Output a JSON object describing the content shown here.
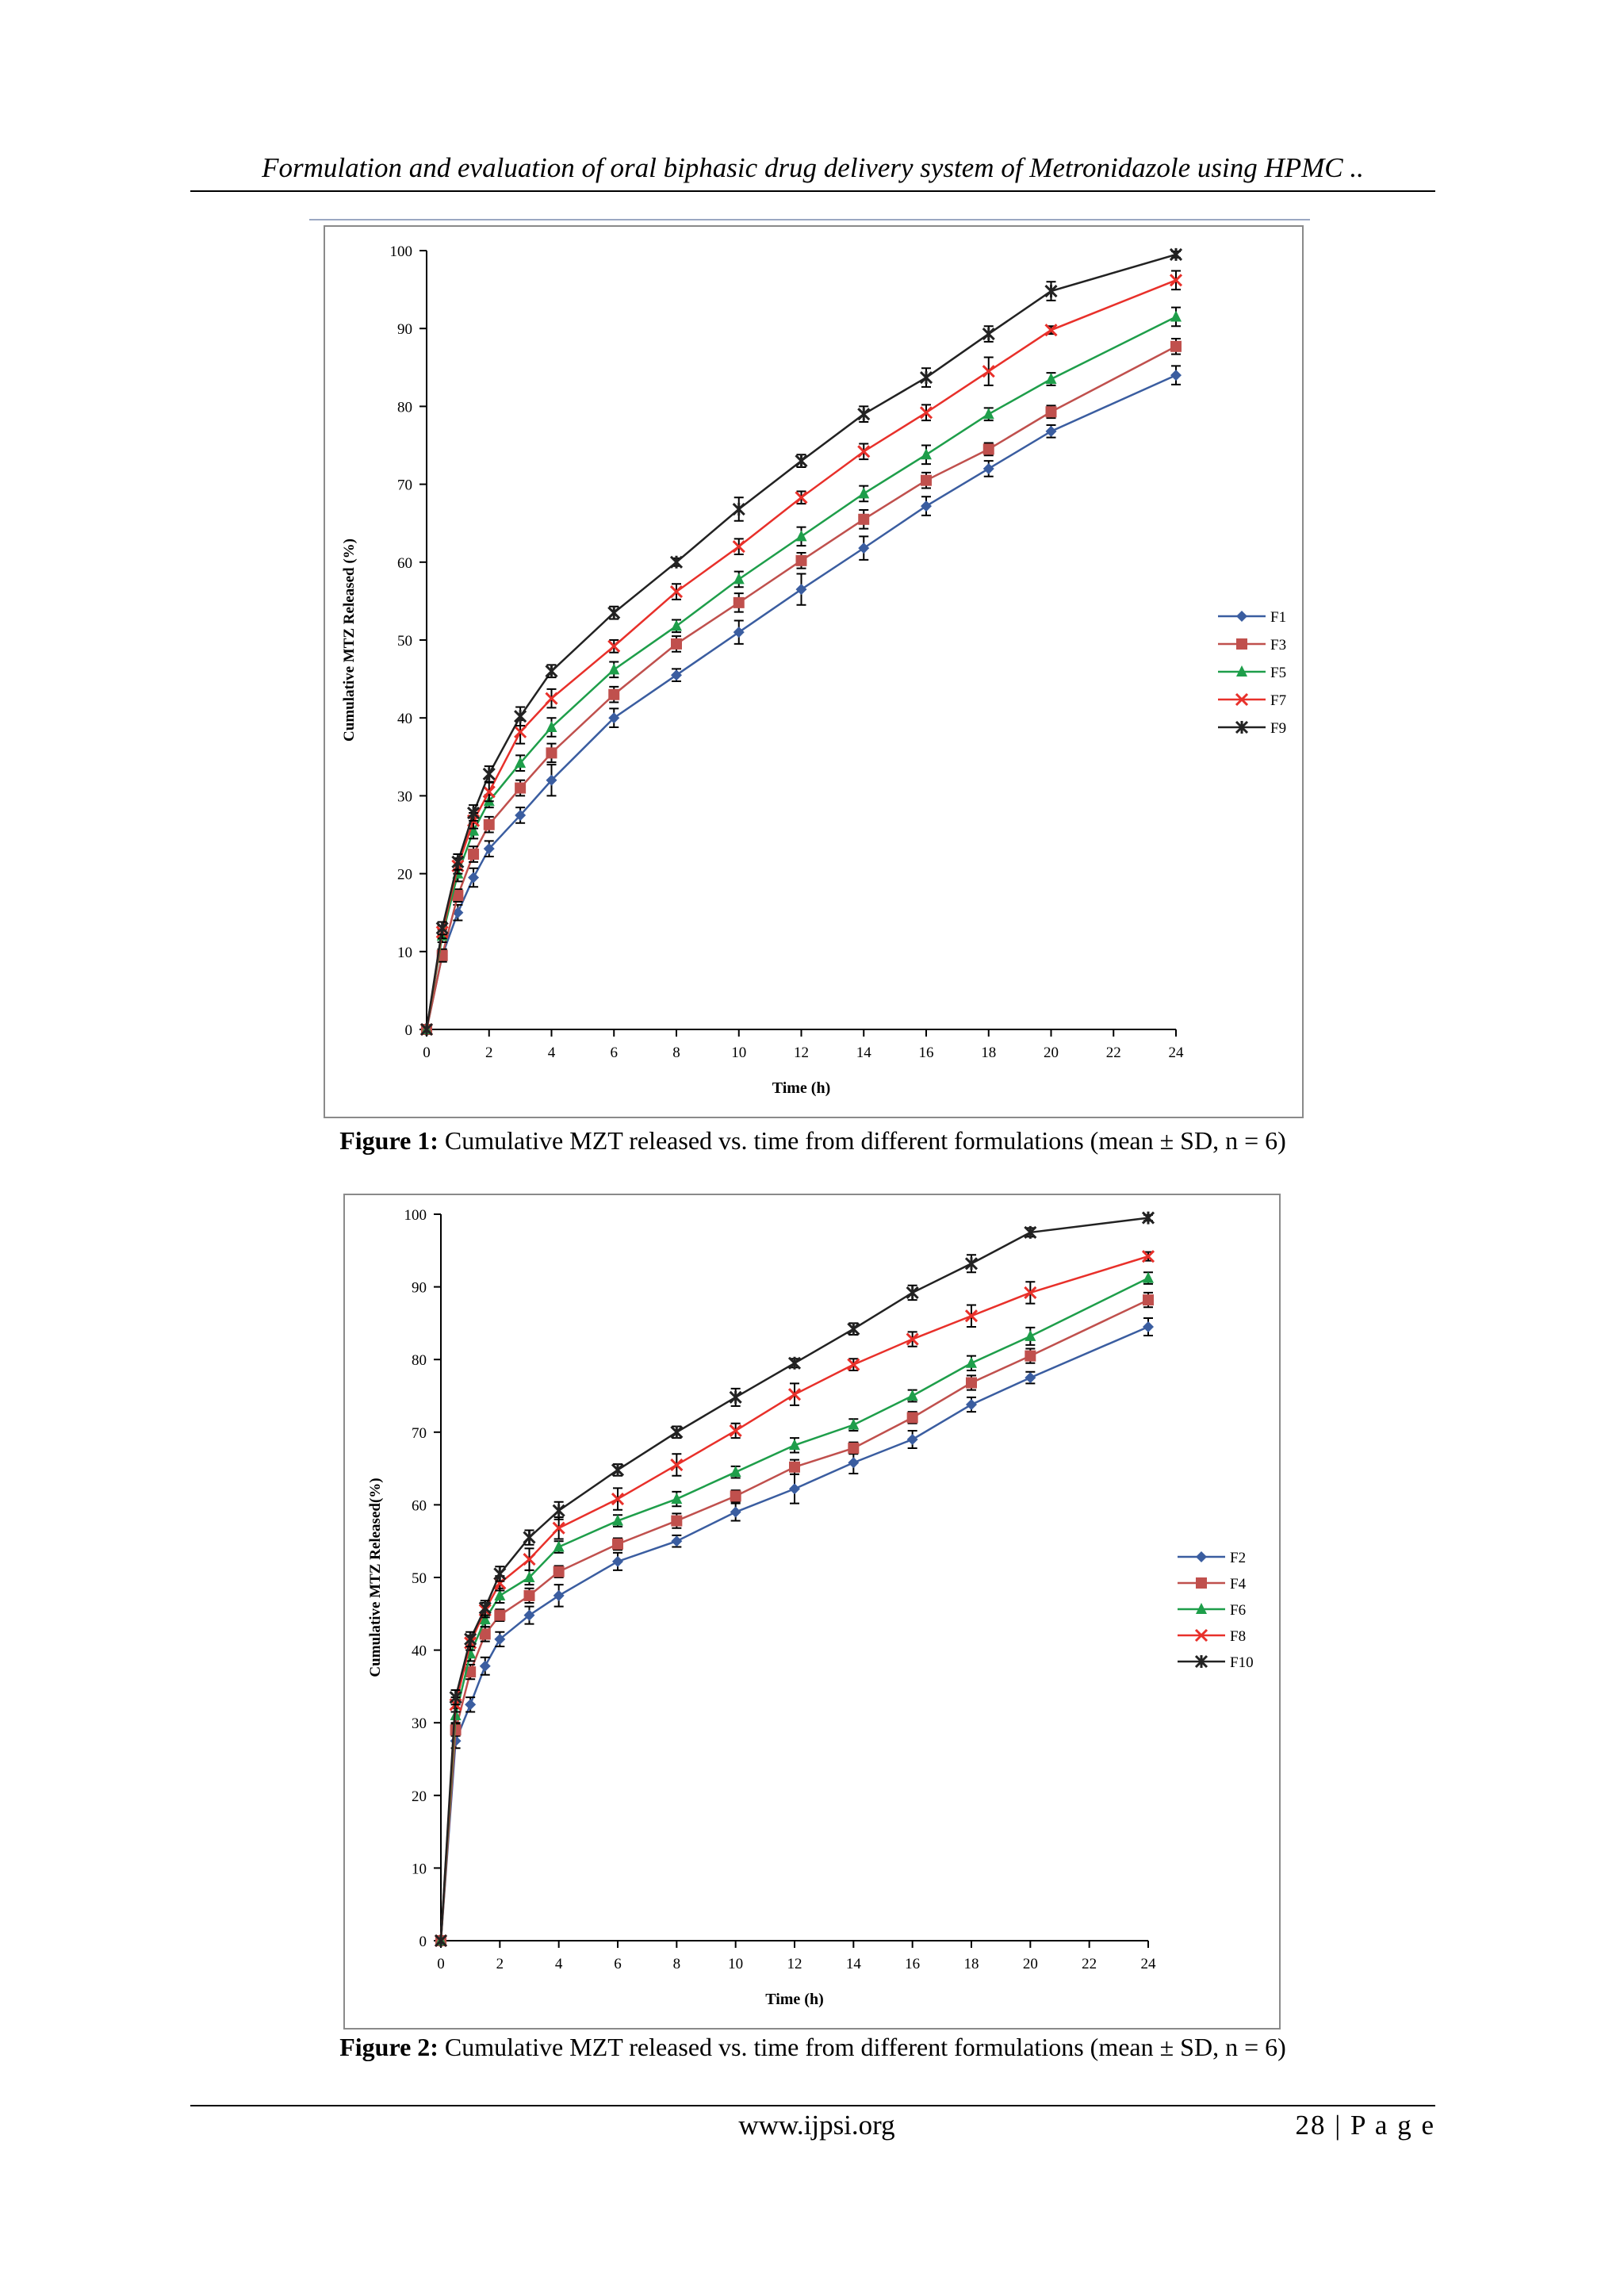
{
  "header": {
    "running_title": "Formulation and evaluation of oral biphasic drug delivery system of Metronidazole using HPMC .."
  },
  "footer": {
    "website": "www.ijpsi.org",
    "page_label": "28 | P a g e"
  },
  "colors": {
    "F1": "#3a5da0",
    "F3": "#c0504d",
    "F5": "#1e9e4a",
    "F7": "#e8302a",
    "F9": "#222222",
    "F2": "#3a5da0",
    "F4": "#c0504d",
    "F6": "#1e9e4a",
    "F8": "#e8302a",
    "F10": "#222222"
  },
  "figures": [
    {
      "caption_bold": "Figure 1:",
      "caption_text": " Cumulative MZT released vs. time from different formulations  (mean ± SD, n = 6)"
    },
    {
      "caption_bold": "Figure  2:",
      "caption_text": " Cumulative MZT released vs. time from different formulations  (mean ± SD, n = 6)"
    }
  ],
  "chart_data": [
    {
      "type": "line",
      "xlabel": "Time (h)",
      "ylabel": "Cumulative MTZ Released (%)",
      "xlim": [
        0,
        24
      ],
      "ylim": [
        0,
        100
      ],
      "x_ticks": [
        0,
        2,
        4,
        6,
        8,
        10,
        12,
        14,
        16,
        18,
        20,
        22,
        24
      ],
      "y_ticks": [
        0,
        10,
        20,
        30,
        40,
        50,
        60,
        70,
        80,
        90,
        100
      ],
      "legend_position": "right",
      "x": [
        0,
        0.5,
        1,
        1.5,
        2,
        3,
        4,
        6,
        8,
        10,
        12,
        14,
        16,
        18,
        20,
        24
      ],
      "series": [
        {
          "name": "F1",
          "marker": "diamond",
          "values": [
            0,
            9.5,
            15,
            19.5,
            23.2,
            27.5,
            32,
            40,
            45.5,
            51,
            56.5,
            61.8,
            67.2,
            72,
            76.8,
            84
          ],
          "errors": [
            0,
            0.8,
            1,
            1.2,
            1,
            1,
            2,
            1.2,
            0.8,
            1.5,
            2,
            1.5,
            1.2,
            1,
            0.8,
            1.2
          ]
        },
        {
          "name": "F3",
          "marker": "square",
          "values": [
            0,
            9.5,
            17.2,
            22.5,
            26.3,
            31,
            35.5,
            43,
            49.5,
            54.8,
            60.2,
            65.5,
            70.5,
            74.5,
            79.3,
            87.7
          ],
          "errors": [
            0,
            0.8,
            0.8,
            1,
            1,
            1,
            1.2,
            1,
            1,
            1.2,
            1,
            1.2,
            1,
            0.8,
            0.8,
            1
          ]
        },
        {
          "name": "F5",
          "marker": "triangle",
          "values": [
            0,
            12,
            20,
            25.5,
            29.3,
            34.2,
            38.8,
            46.2,
            51.8,
            57.8,
            63.3,
            68.8,
            73.8,
            79,
            83.5,
            91.5
          ],
          "errors": [
            0,
            0.8,
            1,
            1,
            0.8,
            1,
            1.2,
            1,
            0.8,
            1,
            1.2,
            1,
            1.2,
            0.8,
            0.8,
            1.2
          ]
        },
        {
          "name": "F7",
          "marker": "x",
          "values": [
            0,
            12.5,
            21,
            26.8,
            30.5,
            38.2,
            42.5,
            49.2,
            56.2,
            62,
            68.3,
            74.2,
            79.2,
            84.5,
            89.8,
            96.2
          ],
          "errors": [
            0,
            0.8,
            1,
            1,
            1.2,
            1.5,
            1.2,
            0.8,
            1,
            1,
            0.8,
            1,
            1,
            1.8,
            0.5,
            1.2
          ]
        },
        {
          "name": "F9",
          "marker": "star",
          "values": [
            0,
            13,
            21.5,
            27.8,
            32.8,
            40.2,
            46,
            53.5,
            60,
            66.8,
            73,
            79,
            83.7,
            89.3,
            94.8,
            99.5
          ],
          "errors": [
            0,
            0.8,
            1,
            1,
            1,
            1.2,
            0.8,
            0.8,
            0.5,
            1.5,
            0.8,
            1,
            1.2,
            1,
            1.2,
            0.4
          ]
        }
      ]
    },
    {
      "type": "line",
      "xlabel": "Time (h)",
      "ylabel": "Cumulative MTZ Released(%)",
      "xlim": [
        0,
        24
      ],
      "ylim": [
        0,
        100
      ],
      "x_ticks": [
        0,
        2,
        4,
        6,
        8,
        10,
        12,
        14,
        16,
        18,
        20,
        22,
        24
      ],
      "y_ticks": [
        0,
        10,
        20,
        30,
        40,
        50,
        60,
        70,
        80,
        90,
        100
      ],
      "legend_position": "right",
      "x": [
        0,
        0.5,
        1,
        1.5,
        2,
        3,
        4,
        6,
        8,
        10,
        12,
        14,
        16,
        18,
        20,
        24
      ],
      "series": [
        {
          "name": "F2",
          "marker": "diamond",
          "values": [
            0,
            27.5,
            32.5,
            37.8,
            41.5,
            44.8,
            47.5,
            52.2,
            55,
            59,
            62.2,
            65.8,
            69,
            73.8,
            77.5,
            84.5
          ],
          "errors": [
            0,
            1,
            1,
            1.2,
            1,
            1.2,
            1.5,
            1.2,
            0.8,
            1.2,
            2,
            1.5,
            1.2,
            1,
            0.8,
            1.2
          ]
        },
        {
          "name": "F4",
          "marker": "square",
          "values": [
            0,
            29,
            37,
            42.2,
            44.8,
            47.5,
            50.8,
            54.6,
            57.8,
            61.2,
            65.2,
            67.8,
            72,
            76.8,
            80.5,
            88.2
          ],
          "errors": [
            0,
            0.8,
            1,
            1,
            0.8,
            1,
            0.8,
            0.8,
            1,
            0.8,
            1,
            0.8,
            0.8,
            1,
            1,
            1
          ]
        },
        {
          "name": "F6",
          "marker": "triangle",
          "values": [
            0,
            31,
            39.5,
            44.2,
            47.5,
            50,
            54.2,
            57.8,
            60.8,
            64.5,
            68.2,
            71,
            75,
            79.5,
            83.2,
            91.2
          ],
          "errors": [
            0,
            1,
            1,
            1,
            1,
            1,
            0.8,
            0.8,
            1,
            0.8,
            1,
            0.8,
            0.8,
            1,
            1.2,
            0.8
          ]
        },
        {
          "name": "F8",
          "marker": "x",
          "values": [
            0,
            32.5,
            41,
            45.5,
            49.2,
            52.5,
            56.8,
            60.8,
            65.5,
            70.2,
            75.2,
            79.3,
            82.8,
            86,
            89.2,
            94.2
          ],
          "errors": [
            0,
            1,
            1,
            1,
            1,
            1.5,
            1.5,
            1.5,
            1.5,
            1,
            1.5,
            0.8,
            1,
            1.5,
            1.5,
            0.6
          ]
        },
        {
          "name": "F10",
          "marker": "star",
          "values": [
            0,
            33.5,
            41.5,
            45.8,
            50.5,
            55.5,
            59.2,
            64.8,
            70,
            74.8,
            79.5,
            84.2,
            89.2,
            93.2,
            97.5,
            99.5
          ],
          "errors": [
            0,
            1,
            1,
            1,
            1,
            1,
            1.2,
            0.8,
            0.8,
            1.2,
            0.6,
            0.8,
            1,
            1.2,
            0.6,
            0.4
          ]
        }
      ]
    }
  ]
}
